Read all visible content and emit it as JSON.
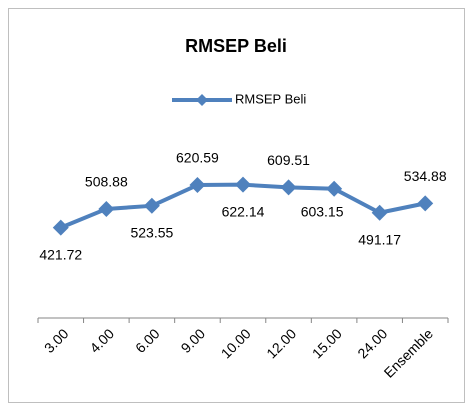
{
  "chart_data": {
    "type": "line",
    "title": "RMSEP Beli",
    "categories": [
      "3.00",
      "4.00",
      "6.00",
      "9.00",
      "10.00",
      "12.00",
      "15.00",
      "24.00",
      "Ensemble"
    ],
    "series": [
      {
        "name": "RMSEP Beli",
        "color": "#4f81bd",
        "values": [
          421.72,
          508.88,
          523.55,
          620.59,
          622.14,
          609.51,
          603.15,
          491.17,
          534.88
        ]
      }
    ],
    "ylim": [
      0,
      700
    ],
    "grid": false,
    "legend": "top"
  }
}
